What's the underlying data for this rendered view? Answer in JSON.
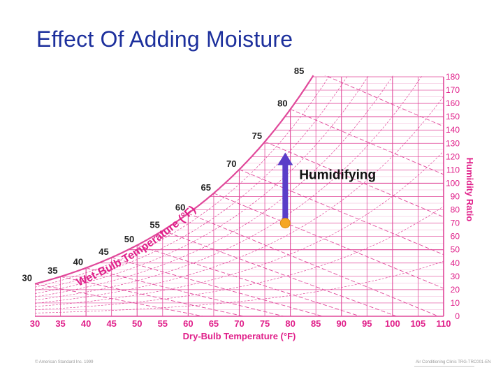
{
  "slide": {
    "title": "Effect Of Adding Moisture",
    "footer_left": "© American Standard Inc. 1999",
    "footer_right": "Air Conditioning Clinic TRG-TRC001-EN"
  },
  "chart_data": {
    "type": "psychrometric",
    "x_axis": {
      "label": "Dry-Bulb Temperature (°F)",
      "ticks": [
        30,
        35,
        40,
        45,
        50,
        55,
        60,
        65,
        70,
        75,
        80,
        85,
        90,
        95,
        100,
        105,
        110
      ],
      "range": [
        30,
        110
      ]
    },
    "y_axis": {
      "label": "Humidity Ratio",
      "position": "right",
      "ticks": [
        0,
        10,
        20,
        30,
        40,
        50,
        60,
        70,
        80,
        90,
        100,
        110,
        120,
        130,
        140,
        150,
        160,
        170,
        180
      ],
      "range": [
        0,
        180
      ]
    },
    "saturation_label": "Wet-Bulb Temperature (°F)",
    "wet_bulb_labels": [
      30,
      35,
      40,
      45,
      50,
      55,
      60,
      65,
      70,
      75,
      80,
      85
    ],
    "process": {
      "label": "Humidifying",
      "start": {
        "db": 79,
        "w": 70
      },
      "end": {
        "db": 79,
        "w": 122
      }
    },
    "colors": {
      "grid": "#e0489a",
      "text": "#e0208a",
      "arrow": "#5a3ec8",
      "point": "#f5a623",
      "title": "#1c2f9c"
    }
  }
}
